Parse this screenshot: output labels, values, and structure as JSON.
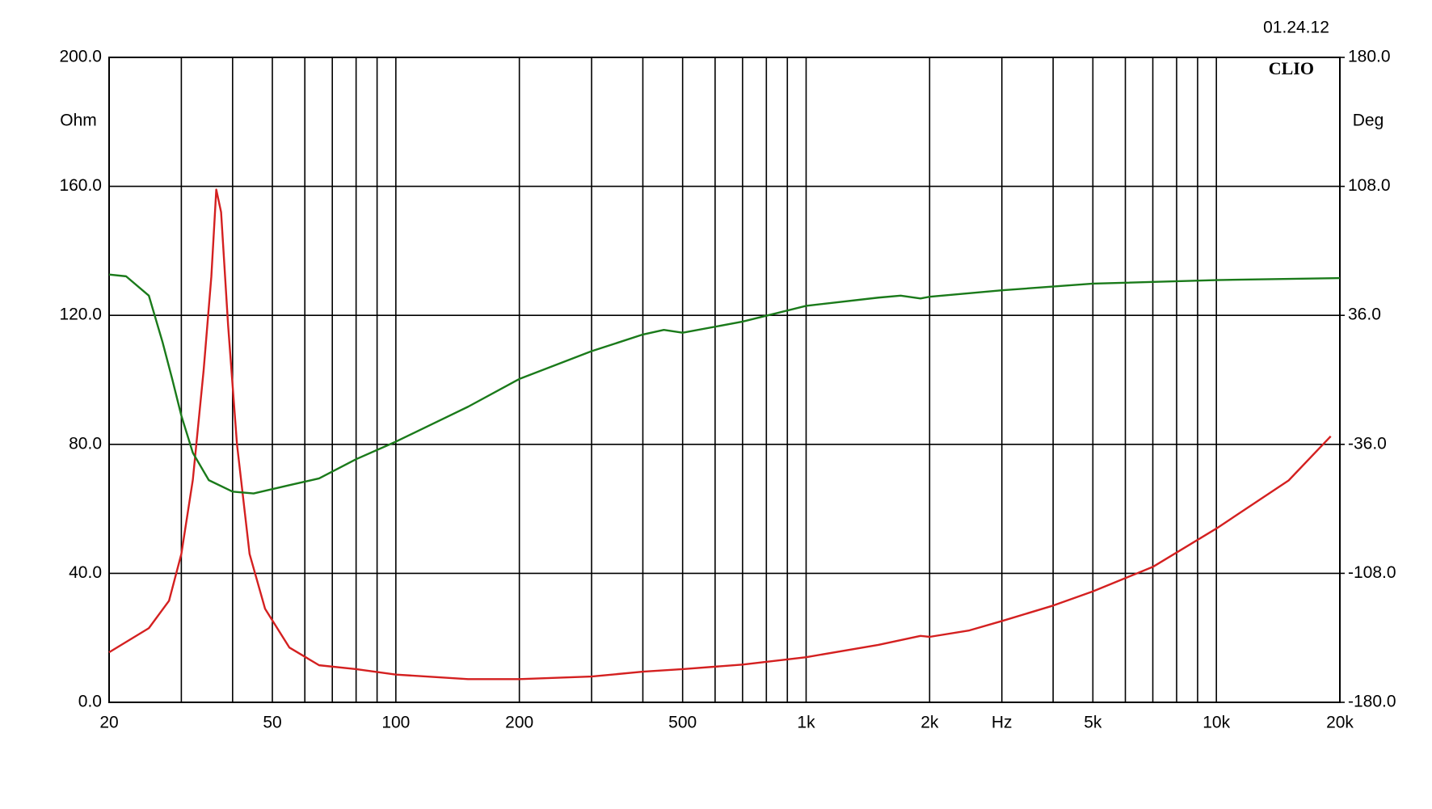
{
  "chart_data": {
    "type": "line",
    "date": "01.24.12",
    "brand": "CLIO",
    "ylabel": "Ohm",
    "y2label": "Deg",
    "log_x": true,
    "grid": true,
    "xlim": [
      20,
      20000
    ],
    "xticks": [
      20,
      50,
      100,
      200,
      500,
      {
        "value": 1000,
        "label": "1k"
      },
      {
        "value": 2000,
        "label": "2k"
      },
      {
        "value": 3000,
        "label": "Hz"
      },
      {
        "value": 5000,
        "label": "5k"
      },
      {
        "value": 10000,
        "label": "10k"
      },
      {
        "value": 20000,
        "label": "20k"
      }
    ],
    "xminor": [
      30,
      40,
      60,
      70,
      80,
      90,
      300,
      400,
      600,
      700,
      800,
      900,
      4000,
      6000,
      7000,
      8000,
      9000
    ],
    "ylim": [
      0,
      200
    ],
    "yticks": [
      {
        "value": 0,
        "label": "0.0"
      },
      {
        "value": 40,
        "label": "40.0"
      },
      {
        "value": 80,
        "label": "80.0"
      },
      {
        "value": 120,
        "label": "120.0"
      },
      {
        "value": 160,
        "label": "160.0"
      },
      {
        "value": 200,
        "label": "200.0"
      }
    ],
    "y2lim": [
      -180,
      180
    ],
    "y2ticks": [
      {
        "value": -180,
        "label": "-180.0"
      },
      {
        "value": -108,
        "label": "-108.0"
      },
      {
        "value": -36,
        "label": "-36.0"
      },
      {
        "value": 36,
        "label": "36.0"
      },
      {
        "value": 108,
        "label": "108.0"
      },
      {
        "value": 180,
        "label": "180.0"
      }
    ],
    "series": [
      {
        "color": "#d42020",
        "x": [
          20,
          25,
          28,
          30,
          32,
          34,
          35.5,
          36.5,
          37.5,
          39,
          41,
          44,
          48,
          55,
          65,
          80,
          100,
          150,
          200,
          300,
          400,
          500,
          700,
          1000,
          1500,
          1900,
          2000,
          2500,
          3000,
          4000,
          5000,
          7000,
          10000,
          15000,
          19000
        ],
        "values": [
          15.5,
          23,
          31.5,
          46,
          69,
          103,
          132,
          159,
          152,
          117,
          80,
          46,
          29,
          17,
          11.5,
          10.3,
          8.6,
          7.2,
          7.2,
          8,
          9.5,
          10.3,
          11.7,
          14,
          17.8,
          20.6,
          20.3,
          22.3,
          25.2,
          30,
          34.4,
          42,
          53.9,
          68.8,
          82.5
        ]
      },
      {
        "color": "#1a7a1a",
        "axis": "y2",
        "x": [
          20,
          22,
          25,
          27,
          28.5,
          30,
          32,
          35,
          40,
          45,
          55,
          65,
          80,
          100,
          150,
          200,
          300,
          400,
          450,
          500,
          700,
          1000,
          1500,
          1700,
          1900,
          2000,
          3000,
          5000,
          10000,
          20000
        ],
        "values": [
          58.8,
          57.8,
          47,
          21,
          0.5,
          -20,
          -40.7,
          -56,
          -62.4,
          -63.4,
          -58.8,
          -55,
          -44.3,
          -34.5,
          -15,
          0.5,
          16,
          25.3,
          27.9,
          26.3,
          32.5,
          41.3,
          45.9,
          47,
          45.4,
          46.4,
          50,
          53.7,
          55.7,
          56.8
        ]
      }
    ]
  }
}
